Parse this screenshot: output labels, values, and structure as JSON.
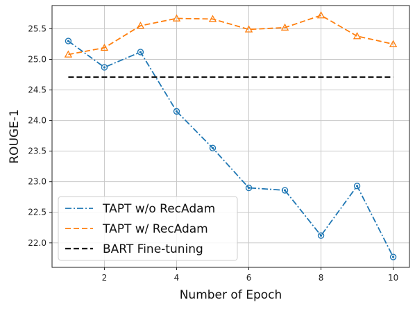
{
  "chart_data": {
    "type": "line",
    "xlabel": "Number of Epoch",
    "ylabel": "ROUGE-1",
    "xlim": [
      0.55,
      10.45
    ],
    "ylim": [
      21.6,
      25.88
    ],
    "x_ticks": [
      2,
      4,
      6,
      8,
      10
    ],
    "y_ticks": [
      22.0,
      22.5,
      23.0,
      23.5,
      24.0,
      24.5,
      25.0,
      25.5
    ],
    "grid": true,
    "legend_position": "lower-left",
    "series": [
      {
        "name": "TAPT w/o RecAdam",
        "color": "#1f77b4",
        "line_style": "dash-dot",
        "marker": "circle",
        "x": [
          1,
          2,
          3,
          4,
          5,
          6,
          7,
          8,
          9,
          10
        ],
        "y": [
          25.3,
          24.87,
          25.12,
          24.15,
          23.55,
          22.9,
          22.86,
          22.12,
          22.93,
          21.77
        ]
      },
      {
        "name": "TAPT w/ RecAdam",
        "color": "#ff7f0e",
        "line_style": "dashed",
        "marker": "triangle",
        "x": [
          1,
          2,
          3,
          4,
          5,
          6,
          7,
          8,
          9,
          10
        ],
        "y": [
          25.08,
          25.19,
          25.55,
          25.67,
          25.66,
          25.49,
          25.52,
          25.72,
          25.38,
          25.25
        ]
      },
      {
        "name": "BART Fine-tuning",
        "color": "#111111",
        "line_style": "dashed",
        "marker": "none",
        "x": [
          1,
          10
        ],
        "y": [
          24.71,
          24.71
        ]
      }
    ]
  }
}
